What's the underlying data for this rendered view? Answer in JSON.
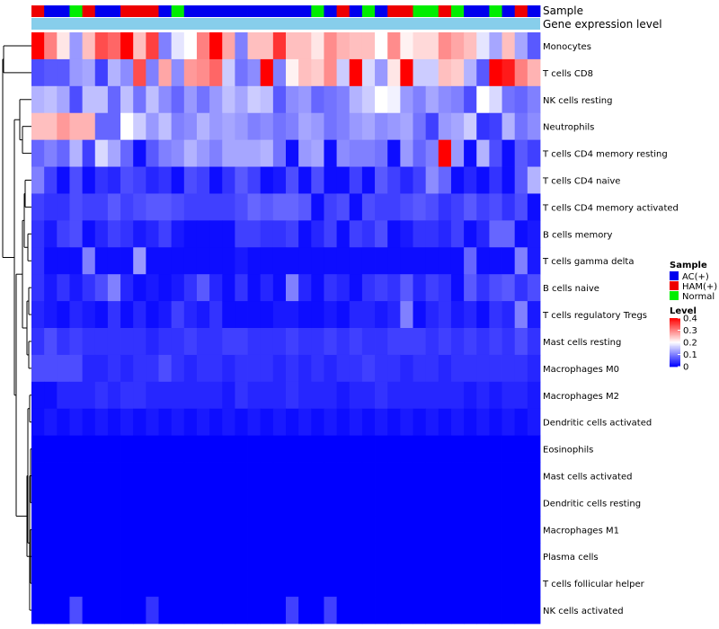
{
  "chart_data": {
    "type": "heatmap",
    "title": "",
    "annotation_labels": {
      "sample": "Sample",
      "expression": "Gene expression level"
    },
    "row_labels": [
      "Monocytes",
      "T cells CD8",
      "NK cells resting",
      "Neutrophils",
      "T cells CD4 memory resting",
      "T cells CD4 naive",
      "T cells CD4 memory activated",
      "B cells memory",
      "T cells gamma delta",
      "B cells naive",
      "T cells regulatory  Tregs",
      "Mast cells resting",
      "Macrophages M0",
      "Macrophages M2",
      "Dendritic cells activated",
      "Eosinophils",
      "Mast cells activated",
      "Dendritic cells resting",
      "Macrophages M1",
      "Plasma cells",
      "T cells follicular helper",
      "NK cells activated"
    ],
    "sample_groups": [
      "HAM(+)",
      "AC(+)",
      "AC(+)",
      "Normal",
      "HAM(+)",
      "AC(+)",
      "AC(+)",
      "HAM(+)",
      "HAM(+)",
      "HAM(+)",
      "AC(+)",
      "Normal",
      "AC(+)",
      "AC(+)",
      "AC(+)",
      "AC(+)",
      "AC(+)",
      "AC(+)",
      "AC(+)",
      "AC(+)",
      "AC(+)",
      "AC(+)",
      "Normal",
      "AC(+)",
      "HAM(+)",
      "AC(+)",
      "Normal",
      "AC(+)",
      "HAM(+)",
      "HAM(+)",
      "Normal",
      "Normal",
      "HAM(+)",
      "Normal",
      "AC(+)",
      "AC(+)",
      "Normal",
      "AC(+)",
      "HAM(+)",
      "AC(+)"
    ],
    "values": [
      [
        0.4,
        0.3,
        0.22,
        0.12,
        0.25,
        0.34,
        0.32,
        0.4,
        0.25,
        0.35,
        0.1,
        0.18,
        0.2,
        0.3,
        0.4,
        0.27,
        0.1,
        0.25,
        0.25,
        0.36,
        0.25,
        0.25,
        0.22,
        0.29,
        0.26,
        0.25,
        0.25,
        0.2,
        0.29,
        0.21,
        0.23,
        0.23,
        0.29,
        0.27,
        0.25,
        0.18,
        0.13,
        0.25,
        0.13,
        0.07
      ],
      [
        0.06,
        0.07,
        0.07,
        0.12,
        0.13,
        0.05,
        0.14,
        0.11,
        0.34,
        0.1,
        0.27,
        0.11,
        0.28,
        0.29,
        0.32,
        0.16,
        0.09,
        0.11,
        0.4,
        0.1,
        0.21,
        0.25,
        0.24,
        0.29,
        0.16,
        0.4,
        0.17,
        0.12,
        0.22,
        0.4,
        0.16,
        0.16,
        0.25,
        0.24,
        0.14,
        0.07,
        0.4,
        0.38,
        0.3,
        0.26
      ],
      [
        0.14,
        0.15,
        0.13,
        0.06,
        0.15,
        0.15,
        0.08,
        0.15,
        0.09,
        0.15,
        0.11,
        0.08,
        0.12,
        0.09,
        0.12,
        0.15,
        0.13,
        0.16,
        0.15,
        0.07,
        0.11,
        0.12,
        0.08,
        0.09,
        0.1,
        0.14,
        0.16,
        0.2,
        0.19,
        0.12,
        0.1,
        0.13,
        0.11,
        0.1,
        0.06,
        0.2,
        0.17,
        0.09,
        0.08,
        0.1
      ],
      [
        0.25,
        0.25,
        0.28,
        0.26,
        0.26,
        0.08,
        0.08,
        0.2,
        0.16,
        0.12,
        0.15,
        0.1,
        0.11,
        0.14,
        0.12,
        0.13,
        0.12,
        0.1,
        0.11,
        0.09,
        0.1,
        0.13,
        0.12,
        0.09,
        0.1,
        0.12,
        0.13,
        0.11,
        0.12,
        0.13,
        0.09,
        0.05,
        0.12,
        0.13,
        0.16,
        0.04,
        0.05,
        0.14,
        0.09,
        0.11
      ],
      [
        0.08,
        0.1,
        0.08,
        0.14,
        0.05,
        0.17,
        0.13,
        0.08,
        0.01,
        0.07,
        0.1,
        0.11,
        0.14,
        0.12,
        0.1,
        0.13,
        0.13,
        0.13,
        0.14,
        0.09,
        0.01,
        0.12,
        0.13,
        0.01,
        0.11,
        0.1,
        0.1,
        0.09,
        0.01,
        0.12,
        0.08,
        0.1,
        0.4,
        0.12,
        0.01,
        0.14,
        0.06,
        0.01,
        0.07,
        0.05
      ],
      [
        0.1,
        0.05,
        0.01,
        0.06,
        0.01,
        0.04,
        0.03,
        0.06,
        0.05,
        0.03,
        0.04,
        0.01,
        0.06,
        0.05,
        0.01,
        0.04,
        0.07,
        0.05,
        0.01,
        0.02,
        0.06,
        0.01,
        0.06,
        0.01,
        0.01,
        0.05,
        0.01,
        0.07,
        0.05,
        0.03,
        0.05,
        0.11,
        0.08,
        0.01,
        0.03,
        0.01,
        0.04,
        0.01,
        0.07,
        0.14
      ],
      [
        0.05,
        0.04,
        0.04,
        0.06,
        0.05,
        0.05,
        0.07,
        0.05,
        0.06,
        0.07,
        0.07,
        0.06,
        0.05,
        0.05,
        0.05,
        0.05,
        0.06,
        0.08,
        0.07,
        0.08,
        0.08,
        0.07,
        0.01,
        0.05,
        0.06,
        0.01,
        0.06,
        0.05,
        0.05,
        0.06,
        0.07,
        0.06,
        0.04,
        0.05,
        0.07,
        0.05,
        0.06,
        0.04,
        0.06,
        0.01
      ],
      [
        0.04,
        0.02,
        0.05,
        0.06,
        0.01,
        0.03,
        0.05,
        0.04,
        0.02,
        0.03,
        0.05,
        0.02,
        0.01,
        0.01,
        0.01,
        0.01,
        0.05,
        0.05,
        0.04,
        0.04,
        0.05,
        0.01,
        0.03,
        0.05,
        0.01,
        0.05,
        0.04,
        0.06,
        0.01,
        0.02,
        0.04,
        0.04,
        0.03,
        0.05,
        0.01,
        0.03,
        0.08,
        0.08,
        0.01,
        0.02
      ],
      [
        0.04,
        0.01,
        0.01,
        0.01,
        0.1,
        0.01,
        0.01,
        0.01,
        0.12,
        0.01,
        0.01,
        0.01,
        0.01,
        0.01,
        0.01,
        0.01,
        0.02,
        0.01,
        0.01,
        0.01,
        0.01,
        0.01,
        0.01,
        0.01,
        0.01,
        0.01,
        0.01,
        0.01,
        0.01,
        0.01,
        0.01,
        0.01,
        0.01,
        0.01,
        0.08,
        0.01,
        0.01,
        0.01,
        0.1,
        0.02
      ],
      [
        0.04,
        0.02,
        0.04,
        0.02,
        0.04,
        0.06,
        0.1,
        0.03,
        0.01,
        0.02,
        0.01,
        0.02,
        0.04,
        0.07,
        0.03,
        0.01,
        0.04,
        0.01,
        0.03,
        0.01,
        0.1,
        0.03,
        0.01,
        0.04,
        0.03,
        0.01,
        0.04,
        0.05,
        0.04,
        0.07,
        0.03,
        0.05,
        0.04,
        0.01,
        0.07,
        0.04,
        0.06,
        0.07,
        0.04,
        0.06
      ],
      [
        0.03,
        0.02,
        0.01,
        0.03,
        0.02,
        0.01,
        0.04,
        0.01,
        0.03,
        0.01,
        0.02,
        0.05,
        0.03,
        0.02,
        0.04,
        0.01,
        0.01,
        0.01,
        0.01,
        0.02,
        0.02,
        0.01,
        0.01,
        0.02,
        0.01,
        0.03,
        0.03,
        0.02,
        0.03,
        0.1,
        0.01,
        0.03,
        0.04,
        0.02,
        0.03,
        0.01,
        0.04,
        0.03,
        0.1,
        0.02
      ],
      [
        0.04,
        0.06,
        0.04,
        0.05,
        0.04,
        0.04,
        0.04,
        0.04,
        0.04,
        0.03,
        0.04,
        0.04,
        0.05,
        0.04,
        0.04,
        0.05,
        0.05,
        0.04,
        0.04,
        0.04,
        0.05,
        0.04,
        0.04,
        0.05,
        0.04,
        0.05,
        0.04,
        0.04,
        0.05,
        0.05,
        0.05,
        0.04,
        0.05,
        0.04,
        0.05,
        0.04,
        0.05,
        0.04,
        0.06,
        0.04
      ],
      [
        0.06,
        0.06,
        0.06,
        0.06,
        0.03,
        0.03,
        0.04,
        0.03,
        0.04,
        0.04,
        0.06,
        0.04,
        0.03,
        0.04,
        0.04,
        0.03,
        0.04,
        0.04,
        0.04,
        0.03,
        0.04,
        0.03,
        0.04,
        0.03,
        0.04,
        0.04,
        0.05,
        0.04,
        0.04,
        0.03,
        0.04,
        0.04,
        0.03,
        0.04,
        0.04,
        0.04,
        0.04,
        0.04,
        0.04,
        0.03
      ],
      [
        0.01,
        0.01,
        0.03,
        0.03,
        0.03,
        0.04,
        0.03,
        0.04,
        0.04,
        0.03,
        0.03,
        0.03,
        0.03,
        0.03,
        0.03,
        0.02,
        0.04,
        0.03,
        0.03,
        0.03,
        0.04,
        0.03,
        0.03,
        0.03,
        0.02,
        0.03,
        0.03,
        0.04,
        0.03,
        0.03,
        0.03,
        0.03,
        0.03,
        0.03,
        0.02,
        0.03,
        0.02,
        0.03,
        0.03,
        0.02
      ],
      [
        0.01,
        0.02,
        0.01,
        0.02,
        0.01,
        0.02,
        0.01,
        0.02,
        0.01,
        0.02,
        0.01,
        0.02,
        0.01,
        0.02,
        0.01,
        0.02,
        0.01,
        0.02,
        0.01,
        0.02,
        0.01,
        0.02,
        0.01,
        0.02,
        0.01,
        0.02,
        0.01,
        0.02,
        0.01,
        0.02,
        0.01,
        0.02,
        0.01,
        0.02,
        0.01,
        0.02,
        0.01,
        0.02,
        0.01,
        0.02
      ],
      [
        0,
        0,
        0,
        0,
        0,
        0,
        0,
        0,
        0,
        0,
        0,
        0,
        0,
        0,
        0,
        0,
        0,
        0,
        0,
        0,
        0,
        0,
        0,
        0,
        0,
        0,
        0,
        0,
        0,
        0,
        0,
        0,
        0,
        0,
        0,
        0,
        0,
        0,
        0,
        0
      ],
      [
        0,
        0,
        0,
        0,
        0,
        0,
        0,
        0,
        0,
        0,
        0,
        0,
        0,
        0,
        0,
        0,
        0,
        0,
        0,
        0,
        0,
        0,
        0,
        0,
        0,
        0,
        0,
        0,
        0,
        0,
        0,
        0,
        0,
        0,
        0,
        0,
        0,
        0,
        0,
        0
      ],
      [
        0,
        0,
        0,
        0,
        0,
        0,
        0,
        0,
        0,
        0,
        0,
        0,
        0,
        0,
        0,
        0,
        0,
        0,
        0,
        0,
        0,
        0,
        0,
        0,
        0,
        0,
        0,
        0,
        0,
        0,
        0,
        0,
        0,
        0,
        0,
        0,
        0,
        0,
        0,
        0
      ],
      [
        0,
        0,
        0,
        0,
        0,
        0,
        0,
        0,
        0,
        0,
        0,
        0,
        0,
        0,
        0,
        0,
        0,
        0,
        0,
        0,
        0,
        0,
        0,
        0,
        0,
        0,
        0,
        0,
        0,
        0,
        0,
        0,
        0,
        0,
        0,
        0,
        0,
        0,
        0,
        0
      ],
      [
        0,
        0,
        0,
        0,
        0,
        0,
        0,
        0,
        0,
        0,
        0,
        0,
        0,
        0,
        0,
        0,
        0,
        0,
        0,
        0,
        0,
        0,
        0,
        0,
        0,
        0,
        0,
        0,
        0,
        0,
        0,
        0,
        0,
        0,
        0,
        0,
        0,
        0,
        0,
        0
      ],
      [
        0,
        0,
        0,
        0,
        0,
        0,
        0,
        0,
        0,
        0,
        0,
        0,
        0,
        0,
        0,
        0,
        0,
        0,
        0,
        0,
        0,
        0,
        0,
        0,
        0,
        0,
        0,
        0,
        0,
        0,
        0,
        0,
        0,
        0,
        0,
        0,
        0,
        0,
        0,
        0
      ],
      [
        0,
        0,
        0,
        0.06,
        0,
        0,
        0,
        0,
        0,
        0.04,
        0,
        0,
        0,
        0,
        0,
        0,
        0,
        0,
        0,
        0,
        0.05,
        0,
        0,
        0.05,
        0,
        0,
        0,
        0,
        0,
        0,
        0,
        0,
        0,
        0,
        0,
        0,
        0,
        0,
        0,
        0
      ]
    ],
    "legend": {
      "sample": {
        "title": "Sample",
        "entries": [
          {
            "label": "AC(+)",
            "color": "#0000ee"
          },
          {
            "label": "HAM(+)",
            "color": "#ee0000"
          },
          {
            "label": "Normal",
            "color": "#00ee00"
          }
        ]
      },
      "level": {
        "title": "Level",
        "ticks": [
          "0.4",
          "0.3",
          "0.2",
          "0.1",
          "0"
        ],
        "range": [
          0,
          0.4
        ],
        "low_color": "#0000ff",
        "mid_color": "#ffffff",
        "high_color": "#ff0000"
      }
    },
    "expression_bar_color": "#87ceeb",
    "legend_position": "right"
  }
}
